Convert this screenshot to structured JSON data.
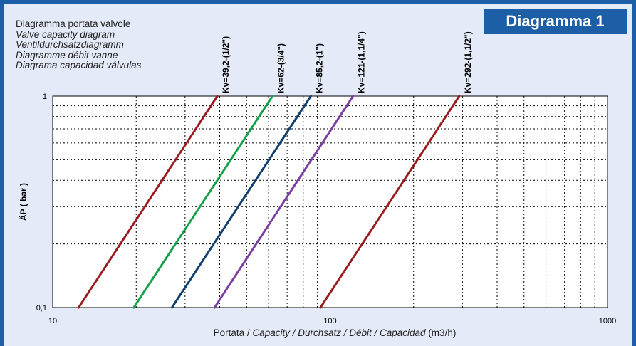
{
  "badge": "Diagramma 1",
  "titles": [
    "Diagramma portata valvole",
    "Valve capacity diagram",
    "Ventildurchsatzdiagramm",
    "Diagramme débit vanne",
    "Diagrama capacidad válvulas"
  ],
  "colors": {
    "frame": "#1d5fa6",
    "panel": "#e4eaf7",
    "plot": "#ffffff"
  },
  "chart_data": {
    "type": "line",
    "x_scale": "log",
    "y_scale": "log",
    "xlim": [
      10,
      1000
    ],
    "ylim": [
      0.1,
      1
    ],
    "x_ticks": [
      "10",
      "100",
      "1000"
    ],
    "y_ticks": [
      "0,1",
      "1"
    ],
    "ylabel": "ÄP ( bar )",
    "xlabel_parts": [
      "Portata / ",
      "Capacity / Durchsatz / Débit / Capacidad",
      " (m3/h)"
    ],
    "grid": true,
    "series": [
      {
        "name": "Kv=39,2-(1/2\")",
        "kv": 39.2,
        "color": "#9b1c20",
        "x": [
          12.4,
          39.2
        ],
        "y": [
          0.1,
          1
        ]
      },
      {
        "name": "Kv=62-(3/4\")",
        "kv": 62,
        "color": "#15a04a",
        "x": [
          19.6,
          62
        ],
        "y": [
          0.1,
          1
        ]
      },
      {
        "name": "Kv=85,2-(1\")",
        "kv": 85.2,
        "color": "#11406e",
        "x": [
          26.9,
          85.2
        ],
        "y": [
          0.1,
          1
        ]
      },
      {
        "name": "Kv=121-(1,1/4\")",
        "kv": 121,
        "color": "#7b3fa2",
        "x": [
          38.3,
          121
        ],
        "y": [
          0.1,
          1
        ]
      },
      {
        "name": "Kv=292-(1,1/2\")",
        "kv": 292,
        "color": "#9b1c20",
        "x": [
          92.3,
          292
        ],
        "y": [
          0.1,
          1
        ]
      }
    ]
  }
}
